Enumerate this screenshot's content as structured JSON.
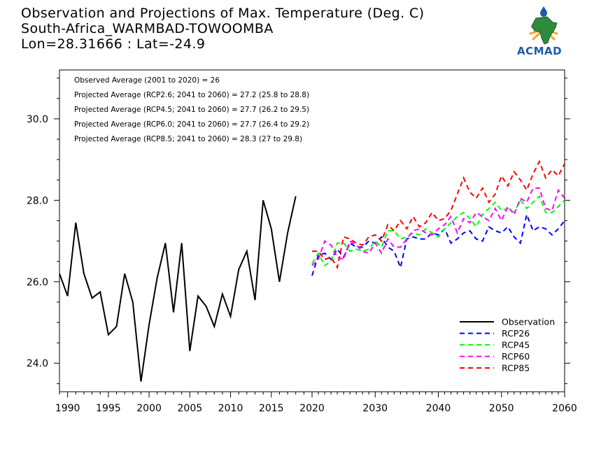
{
  "header": {
    "title_line1": "Observation and Projections of Max. Temperature (Deg. C)",
    "title_line2": "South-Africa_WARMBAD-TOWOOMBA",
    "title_line3": "Lon=28.31666 : Lat=-24.9"
  },
  "logo": {
    "text": "ACMAD"
  },
  "colors": {
    "observation": "#000000",
    "rcp26": "#0000ff",
    "rcp45": "#00ff00",
    "rcp60": "#ff00ff",
    "rcp85": "#ff0000",
    "logo_text": "#1e5aa8"
  },
  "chart_data": {
    "type": "line",
    "xlim": [
      1989,
      2060
    ],
    "ylim": [
      23.3,
      31.2
    ],
    "x_ticks": [
      1990,
      1995,
      2000,
      2005,
      2010,
      2015,
      2020,
      2030,
      2040,
      2050,
      2060
    ],
    "y_ticks": [
      24.0,
      26.0,
      28.0,
      30.0
    ],
    "y_tick_labels": [
      "24.0",
      "26.0",
      "28.0",
      "30.0"
    ],
    "annotations": [
      "Observed Average (2001 to 2020) = 26",
      "Projected Average (RCP2.6; 2041 to 2060) = 27.2 (25.8 to 28.8)",
      "Projected Average (RCP4.5; 2041 to 2060) = 27.7 (26.2 to 29.5)",
      "Projected Average (RCP6.0; 2041 to 2060) = 27.7 (26.4 to 29.2)",
      "Projected Average (RCP8.5; 2041 to 2060) = 28.3 (27 to 29.8)"
    ],
    "legend_position": "bottom-right",
    "series": [
      {
        "name": "Observation",
        "style": "solid",
        "color": "#000000",
        "x": [
          1989,
          1990,
          1991,
          1992,
          1993,
          1994,
          1995,
          1996,
          1997,
          1998,
          1999,
          2000,
          2001,
          2002,
          2003,
          2004,
          2005,
          2006,
          2007,
          2008,
          2009,
          2010,
          2011,
          2012,
          2013,
          2014,
          2015,
          2016,
          2017,
          2018,
          2019,
          2020
        ],
        "y": [
          26.2,
          25.65,
          27.45,
          26.2,
          25.6,
          25.75,
          24.7,
          24.9,
          26.2,
          25.5,
          23.55,
          24.95,
          26.1,
          26.95,
          25.25,
          26.95,
          24.3,
          25.65,
          25.4,
          24.9,
          25.7,
          25.15,
          26.3,
          26.75,
          25.55,
          28.0,
          27.3,
          26.0,
          27.2,
          28.1,
          null,
          null
        ]
      },
      {
        "name": "RCP26",
        "style": "dashed",
        "color": "#0000ff",
        "x": [
          2020,
          2021,
          2022,
          2023,
          2024,
          2025,
          2026,
          2027,
          2028,
          2029,
          2030,
          2031,
          2032,
          2033,
          2034,
          2035,
          2036,
          2037,
          2038,
          2039,
          2040,
          2041,
          2042,
          2043,
          2044,
          2045,
          2046,
          2047,
          2048,
          2049,
          2050,
          2051,
          2052,
          2053,
          2054,
          2055,
          2056,
          2057,
          2058,
          2059,
          2060
        ],
        "y": [
          26.15,
          26.65,
          26.7,
          26.55,
          26.8,
          26.6,
          26.95,
          26.85,
          26.85,
          27.0,
          26.95,
          27.1,
          26.85,
          26.75,
          26.35,
          27.05,
          27.1,
          27.05,
          27.05,
          27.2,
          27.15,
          27.3,
          26.95,
          27.05,
          27.2,
          27.25,
          27.05,
          27.0,
          27.35,
          27.25,
          27.2,
          27.35,
          27.1,
          26.95,
          27.65,
          27.25,
          27.35,
          27.3,
          27.15,
          27.3,
          27.5
        ]
      },
      {
        "name": "RCP45",
        "style": "dashed",
        "color": "#00ff00",
        "x": [
          2020,
          2021,
          2022,
          2023,
          2024,
          2025,
          2026,
          2027,
          2028,
          2029,
          2030,
          2031,
          2032,
          2033,
          2034,
          2035,
          2036,
          2037,
          2038,
          2039,
          2040,
          2041,
          2042,
          2043,
          2044,
          2045,
          2046,
          2047,
          2048,
          2049,
          2050,
          2051,
          2052,
          2053,
          2054,
          2055,
          2056,
          2057,
          2058,
          2059,
          2060
        ],
        "y": [
          26.45,
          26.7,
          26.4,
          26.5,
          26.95,
          26.95,
          26.75,
          26.8,
          26.75,
          26.8,
          27.0,
          26.85,
          27.25,
          27.25,
          27.05,
          27.1,
          27.2,
          27.15,
          27.3,
          27.2,
          27.1,
          27.3,
          27.45,
          27.6,
          27.7,
          27.55,
          27.35,
          27.65,
          27.8,
          27.95,
          27.75,
          27.8,
          27.7,
          28.0,
          27.8,
          27.95,
          28.1,
          27.7,
          27.7,
          27.85,
          28.0
        ]
      },
      {
        "name": "RCP60",
        "style": "dashed",
        "color": "#ff00ff",
        "x": [
          2020,
          2021,
          2022,
          2023,
          2024,
          2025,
          2026,
          2027,
          2028,
          2029,
          2030,
          2031,
          2032,
          2033,
          2034,
          2035,
          2036,
          2037,
          2038,
          2039,
          2040,
          2041,
          2042,
          2043,
          2044,
          2045,
          2046,
          2047,
          2048,
          2049,
          2050,
          2051,
          2052,
          2053,
          2054,
          2055,
          2056,
          2057,
          2058,
          2059,
          2060
        ],
        "y": [
          26.4,
          26.55,
          27.0,
          26.9,
          26.6,
          26.55,
          27.0,
          26.9,
          26.75,
          26.7,
          26.95,
          26.7,
          27.05,
          26.85,
          26.85,
          27.05,
          27.25,
          27.3,
          27.2,
          27.15,
          27.3,
          27.4,
          27.6,
          27.2,
          27.55,
          27.45,
          27.7,
          27.6,
          27.5,
          27.8,
          27.5,
          27.85,
          27.65,
          28.05,
          27.95,
          28.3,
          28.3,
          27.8,
          27.75,
          28.25,
          28.05
        ]
      },
      {
        "name": "RCP85",
        "style": "dashed",
        "color": "#ff0000",
        "x": [
          2020,
          2021,
          2022,
          2023,
          2024,
          2025,
          2026,
          2027,
          2028,
          2029,
          2030,
          2031,
          2032,
          2033,
          2034,
          2035,
          2036,
          2037,
          2038,
          2039,
          2040,
          2041,
          2042,
          2043,
          2044,
          2045,
          2046,
          2047,
          2048,
          2049,
          2050,
          2051,
          2052,
          2053,
          2054,
          2055,
          2056,
          2057,
          2058,
          2059,
          2060
        ],
        "y": [
          26.75,
          26.75,
          26.55,
          26.6,
          26.35,
          27.1,
          27.05,
          26.95,
          26.9,
          27.1,
          27.15,
          27.0,
          27.4,
          27.25,
          27.5,
          27.3,
          27.6,
          27.35,
          27.45,
          27.7,
          27.5,
          27.55,
          27.75,
          28.15,
          28.55,
          28.2,
          28.05,
          28.3,
          27.95,
          28.15,
          28.6,
          28.35,
          28.7,
          28.5,
          28.25,
          28.65,
          28.95,
          28.55,
          28.75,
          28.6,
          28.9
        ]
      }
    ]
  }
}
